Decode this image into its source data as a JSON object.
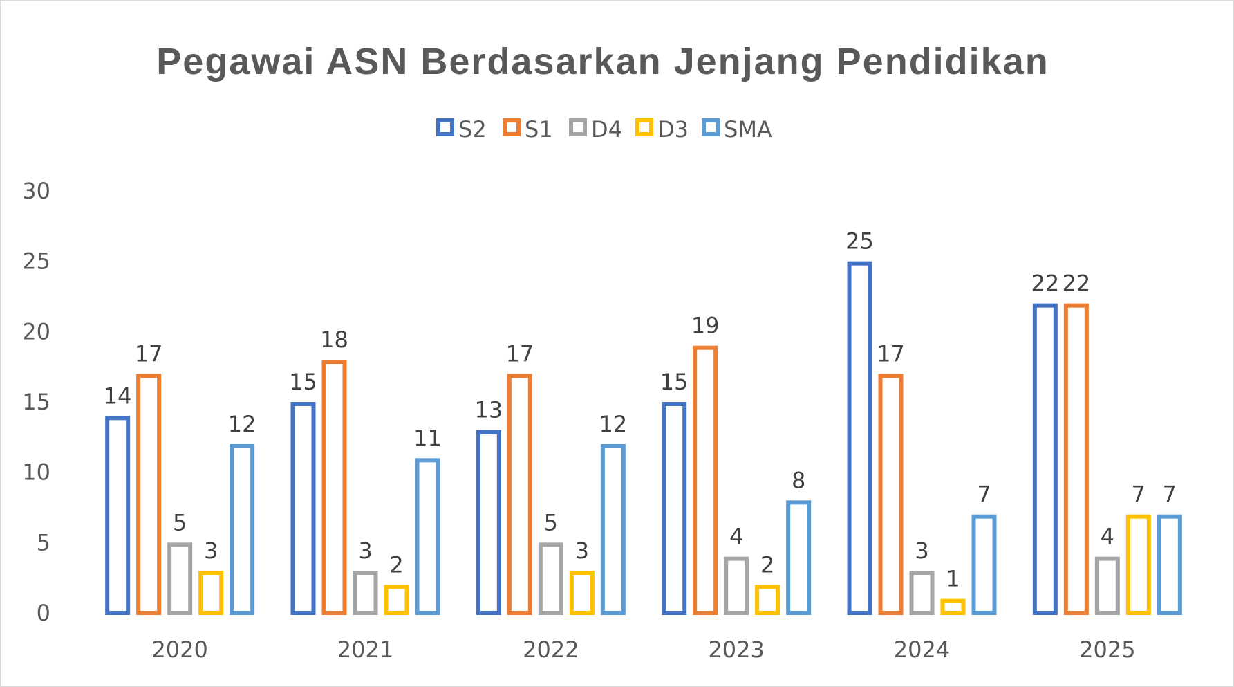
{
  "chart_data": {
    "type": "bar",
    "title": "Pegawai ASN Berdasarkan Jenjang Pendidikan",
    "categories": [
      "2020",
      "2021",
      "2022",
      "2023",
      "2024",
      "2025"
    ],
    "series": [
      {
        "name": "S2",
        "color": "#4472C4",
        "values": [
          14,
          15,
          13,
          15,
          25,
          22
        ]
      },
      {
        "name": "S1",
        "color": "#ED7D31",
        "values": [
          17,
          18,
          17,
          19,
          17,
          22
        ]
      },
      {
        "name": "D4",
        "color": "#A5A5A5",
        "values": [
          5,
          3,
          5,
          4,
          3,
          4
        ]
      },
      {
        "name": "D3",
        "color": "#FFC000",
        "values": [
          3,
          2,
          3,
          2,
          1,
          7
        ]
      },
      {
        "name": "SMA",
        "color": "#5B9BD5",
        "values": [
          12,
          11,
          12,
          8,
          7,
          7
        ]
      }
    ],
    "ylim": [
      0,
      30
    ],
    "yticks": [
      0,
      5,
      10,
      15,
      20,
      25,
      30
    ],
    "grid": false,
    "legend_position": "top",
    "style": "outlined bars with data labels"
  }
}
